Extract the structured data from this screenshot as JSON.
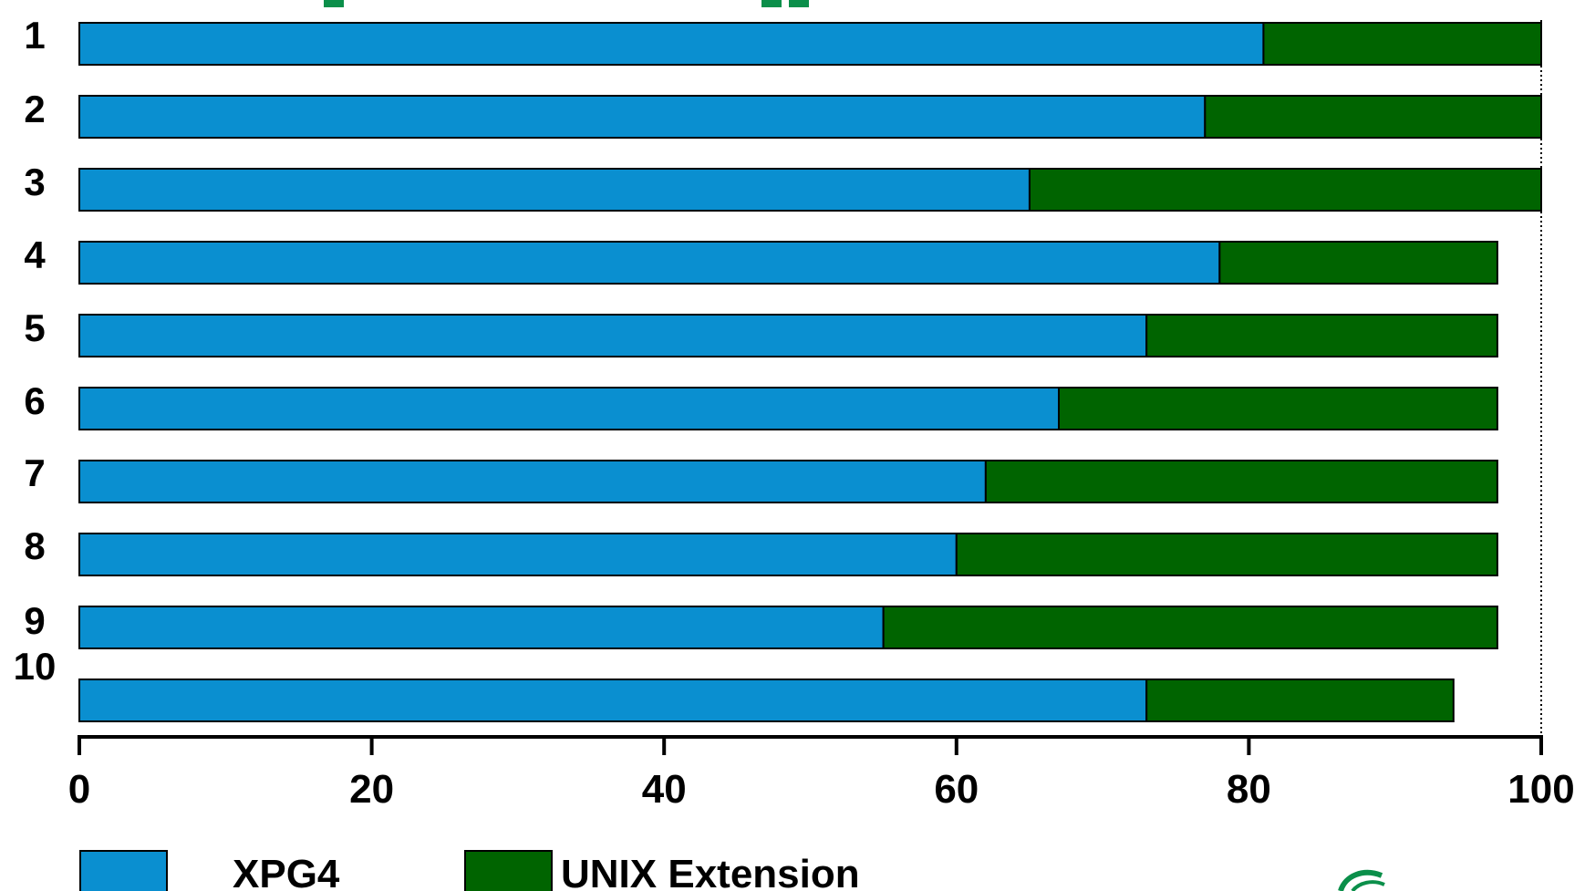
{
  "chart_data": {
    "type": "bar",
    "orientation": "horizontal",
    "stacked": true,
    "categories": [
      "1",
      "2",
      "3",
      "4",
      "5",
      "6",
      "7",
      "8",
      "9",
      "10"
    ],
    "series": [
      {
        "name": "XPG4",
        "color": "#0a8fd0",
        "values": [
          81,
          77,
          65,
          78,
          73,
          67,
          62,
          60,
          55,
          73
        ]
      },
      {
        "name": "UNIX Extension",
        "color": "#006400",
        "values": [
          19,
          23,
          35,
          19,
          24,
          30,
          35,
          37,
          42,
          21
        ]
      }
    ],
    "xlim": [
      0,
      100
    ],
    "xticks": [
      "0",
      "20",
      "40",
      "60",
      "80",
      "100"
    ],
    "legend_position": "bottom-left",
    "grid": false
  }
}
